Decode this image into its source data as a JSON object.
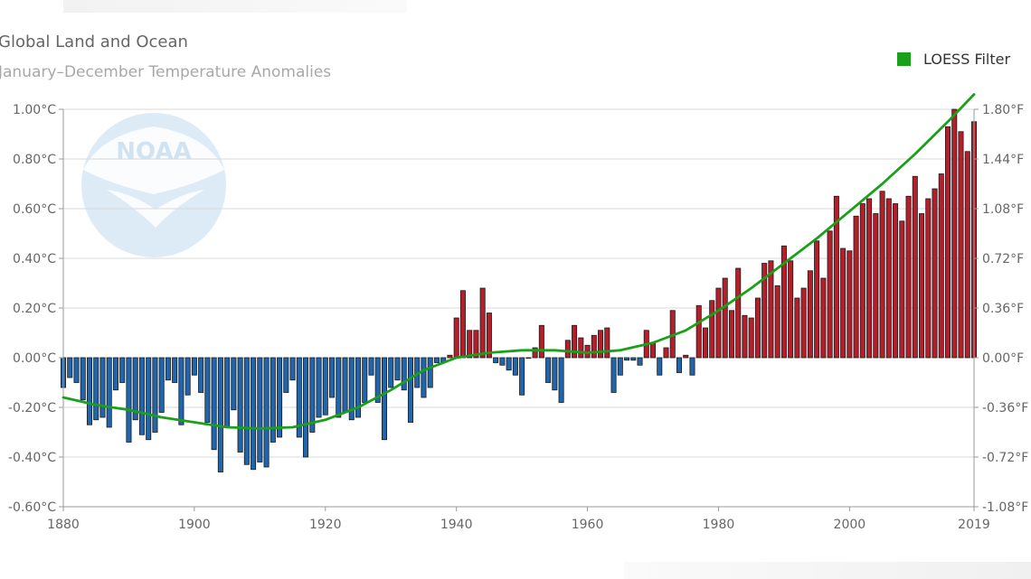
{
  "header": {
    "title": "Global Land and Ocean",
    "subtitle": "January–December Temperature Anomalies"
  },
  "colors": {
    "positive": "#b3202c",
    "negative": "#2166ac",
    "loess": "#1aa01a",
    "grid": "#d9d9d9",
    "logo": "#cfe3f3"
  },
  "watermark_icon": "noaa-logo-watermark",
  "chart_data": {
    "type": "bar",
    "title": "Global Land and Ocean",
    "subtitle": "January–December Temperature Anomalies",
    "xlabel": "",
    "ylabel": "",
    "xlim": [
      1880,
      2019
    ],
    "ylim": [
      -0.6,
      1.0
    ],
    "grid": true,
    "legend": {
      "placement": "top-right",
      "entries": [
        "LOESS Filter"
      ]
    },
    "x_ticks": [
      "1880",
      "1900",
      "1920",
      "1940",
      "1960",
      "1980",
      "2000",
      "2019"
    ],
    "y_ticks_left": [
      "-0.60°C",
      "-0.40°C",
      "-0.20°C",
      "0.00°C",
      "0.20°C",
      "0.40°C",
      "0.60°C",
      "0.80°C",
      "1.00°C"
    ],
    "y_ticks_right": [
      "-1.08°F",
      "-0.72°F",
      "-0.36°F",
      "0.00°F",
      "0.36°F",
      "0.72°F",
      "1.08°F",
      "1.44°F",
      "1.80°F"
    ],
    "years": [
      1880,
      1881,
      1882,
      1883,
      1884,
      1885,
      1886,
      1887,
      1888,
      1889,
      1890,
      1891,
      1892,
      1893,
      1894,
      1895,
      1896,
      1897,
      1898,
      1899,
      1900,
      1901,
      1902,
      1903,
      1904,
      1905,
      1906,
      1907,
      1908,
      1909,
      1910,
      1911,
      1912,
      1913,
      1914,
      1915,
      1916,
      1917,
      1918,
      1919,
      1920,
      1921,
      1922,
      1923,
      1924,
      1925,
      1926,
      1927,
      1928,
      1929,
      1930,
      1931,
      1932,
      1933,
      1934,
      1935,
      1936,
      1937,
      1938,
      1939,
      1940,
      1941,
      1942,
      1943,
      1944,
      1945,
      1946,
      1947,
      1948,
      1949,
      1950,
      1951,
      1952,
      1953,
      1954,
      1955,
      1956,
      1957,
      1958,
      1959,
      1960,
      1961,
      1962,
      1963,
      1964,
      1965,
      1966,
      1967,
      1968,
      1969,
      1970,
      1971,
      1972,
      1973,
      1974,
      1975,
      1976,
      1977,
      1978,
      1979,
      1980,
      1981,
      1982,
      1983,
      1984,
      1985,
      1986,
      1987,
      1988,
      1989,
      1990,
      1991,
      1992,
      1993,
      1994,
      1995,
      1996,
      1997,
      1998,
      1999,
      2000,
      2001,
      2002,
      2003,
      2004,
      2005,
      2006,
      2007,
      2008,
      2009,
      2010,
      2011,
      2012,
      2013,
      2014,
      2015,
      2016,
      2017,
      2018,
      2019
    ],
    "values": [
      -0.12,
      -0.08,
      -0.1,
      -0.17,
      -0.27,
      -0.25,
      -0.24,
      -0.28,
      -0.13,
      -0.1,
      -0.34,
      -0.25,
      -0.31,
      -0.33,
      -0.3,
      -0.22,
      -0.09,
      -0.1,
      -0.27,
      -0.15,
      -0.07,
      -0.14,
      -0.26,
      -0.37,
      -0.46,
      -0.28,
      -0.21,
      -0.38,
      -0.43,
      -0.45,
      -0.42,
      -0.44,
      -0.34,
      -0.32,
      -0.14,
      -0.09,
      -0.32,
      -0.4,
      -0.3,
      -0.24,
      -0.23,
      -0.16,
      -0.24,
      -0.22,
      -0.25,
      -0.24,
      -0.18,
      -0.07,
      -0.18,
      -0.33,
      -0.12,
      -0.09,
      -0.13,
      -0.26,
      -0.12,
      -0.16,
      -0.12,
      -0.02,
      -0.02,
      0.01,
      0.16,
      0.27,
      0.11,
      0.11,
      0.28,
      0.18,
      -0.02,
      -0.03,
      -0.05,
      -0.07,
      -0.15,
      0.0,
      0.04,
      0.13,
      -0.1,
      -0.13,
      -0.18,
      0.07,
      0.13,
      0.08,
      0.05,
      0.09,
      0.11,
      0.12,
      -0.14,
      -0.07,
      -0.01,
      -0.01,
      -0.03,
      0.11,
      0.06,
      -0.07,
      0.04,
      0.19,
      -0.06,
      0.01,
      -0.07,
      0.21,
      0.12,
      0.23,
      0.28,
      0.32,
      0.19,
      0.36,
      0.17,
      0.16,
      0.24,
      0.38,
      0.39,
      0.29,
      0.45,
      0.39,
      0.24,
      0.28,
      0.35,
      0.47,
      0.32,
      0.51,
      0.65,
      0.44,
      0.43,
      0.57,
      0.62,
      0.64,
      0.58,
      0.67,
      0.64,
      0.62,
      0.55,
      0.65,
      0.73,
      0.58,
      0.64,
      0.68,
      0.74,
      0.93,
      1.0,
      0.91,
      0.83,
      0.95
    ],
    "series": [
      {
        "name": "LOESS Filter",
        "x": [
          1880,
          1885,
          1890,
          1895,
          1900,
          1905,
          1910,
          1915,
          1920,
          1925,
          1930,
          1935,
          1940,
          1945,
          1950,
          1955,
          1960,
          1965,
          1970,
          1975,
          1980,
          1985,
          1990,
          1995,
          2000,
          2005,
          2010,
          2015,
          2019
        ],
        "values": [
          -0.16,
          -0.19,
          -0.21,
          -0.24,
          -0.26,
          -0.28,
          -0.285,
          -0.28,
          -0.25,
          -0.2,
          -0.13,
          -0.05,
          0.0,
          0.02,
          0.03,
          0.03,
          0.02,
          0.03,
          0.06,
          0.11,
          0.19,
          0.28,
          0.38,
          0.48,
          0.59,
          0.7,
          0.82,
          0.95,
          1.06
        ]
      }
    ]
  }
}
